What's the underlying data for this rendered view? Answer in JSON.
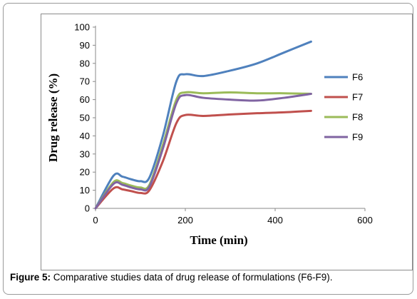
{
  "caption": {
    "label": "Figure 5:",
    "text": " Comparative studies data of drug release of formulations (F6-F9)."
  },
  "chart_data": {
    "type": "line",
    "xlabel": "Time (min)",
    "ylabel": "Drug release (%)",
    "xlim": [
      0,
      600
    ],
    "ylim": [
      0,
      100
    ],
    "xticks": [
      0,
      200,
      400,
      600
    ],
    "yticks": [
      0,
      10,
      20,
      30,
      40,
      50,
      60,
      70,
      80,
      90,
      100
    ],
    "grid": false,
    "legend_position": "right",
    "series": [
      {
        "name": "F6",
        "color": "#4f81bd",
        "points": [
          [
            0,
            0
          ],
          [
            40,
            18
          ],
          [
            60,
            17.5
          ],
          [
            80,
            16
          ],
          [
            100,
            15
          ],
          [
            120,
            17
          ],
          [
            150,
            40
          ],
          [
            180,
            70
          ],
          [
            200,
            74
          ],
          [
            240,
            73
          ],
          [
            300,
            76
          ],
          [
            360,
            80
          ],
          [
            420,
            86
          ],
          [
            480,
            92
          ]
        ]
      },
      {
        "name": "F7",
        "color": "#c0504d",
        "points": [
          [
            0,
            0
          ],
          [
            40,
            11
          ],
          [
            60,
            10.5
          ],
          [
            80,
            9.5
          ],
          [
            100,
            8.5
          ],
          [
            120,
            10
          ],
          [
            150,
            26
          ],
          [
            180,
            47
          ],
          [
            200,
            51.5
          ],
          [
            240,
            51
          ],
          [
            300,
            51.8
          ],
          [
            360,
            52.5
          ],
          [
            420,
            53
          ],
          [
            480,
            53.8
          ]
        ]
      },
      {
        "name": "F8",
        "color": "#9bbb59",
        "points": [
          [
            0,
            0
          ],
          [
            40,
            14.5
          ],
          [
            60,
            14
          ],
          [
            80,
            12.5
          ],
          [
            100,
            11.5
          ],
          [
            120,
            13
          ],
          [
            150,
            35
          ],
          [
            180,
            60
          ],
          [
            200,
            64
          ],
          [
            240,
            63.5
          ],
          [
            300,
            64
          ],
          [
            360,
            63.5
          ],
          [
            420,
            63.5
          ],
          [
            480,
            63.2
          ]
        ]
      },
      {
        "name": "F9",
        "color": "#8064a2",
        "points": [
          [
            0,
            0
          ],
          [
            40,
            13.5
          ],
          [
            60,
            13
          ],
          [
            80,
            11.5
          ],
          [
            100,
            10.5
          ],
          [
            120,
            12
          ],
          [
            150,
            33
          ],
          [
            180,
            58
          ],
          [
            200,
            62.5
          ],
          [
            240,
            61
          ],
          [
            300,
            60
          ],
          [
            360,
            59.5
          ],
          [
            420,
            61
          ],
          [
            480,
            63.2
          ]
        ]
      }
    ]
  }
}
